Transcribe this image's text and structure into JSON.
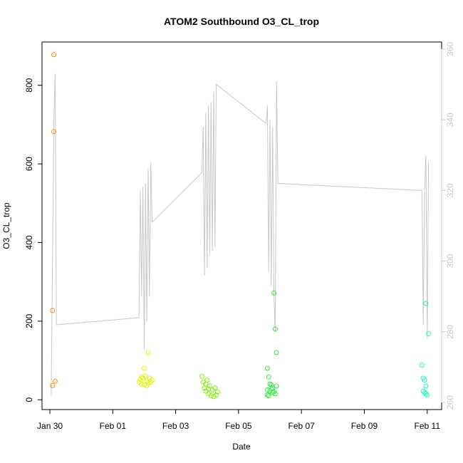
{
  "chart_data": {
    "type": "scatter",
    "title": "ATOM2 Southbound O3_CL_trop",
    "xlabel": "Date",
    "ylabel": "O3_CL_trop",
    "x_ticks": [
      "Jan 30",
      "Feb 01",
      "Feb 03",
      "Feb 05",
      "Feb 07",
      "Feb 09",
      "Feb 11"
    ],
    "y_ticks": [
      0,
      200,
      400,
      600,
      800
    ],
    "y2_ticks": [
      260,
      280,
      300,
      320,
      340,
      360
    ],
    "xlim": [
      "2017-01-29 18:00",
      "2017-02-11 11:00"
    ],
    "ylim": [
      -25,
      910
    ],
    "y2lim": [
      258,
      362
    ],
    "grid": false,
    "series": [
      {
        "color": "#FF8C00",
        "points": [
          [
            "2017-01-30 03:00",
            878
          ],
          [
            "2017-01-30 03:00",
            682
          ],
          [
            "2017-01-30 02:00",
            227
          ],
          [
            "2017-01-30 04:00",
            47
          ],
          [
            "2017-01-30 02:00",
            36
          ]
        ]
      },
      {
        "color": "#E8F000",
        "points": [
          [
            "2017-02-01 20:00",
            45
          ],
          [
            "2017-02-01 21:00",
            52
          ],
          [
            "2017-02-01 22:00",
            40
          ],
          [
            "2017-02-01 23:00",
            55
          ],
          [
            "2017-02-02 00:00",
            80
          ],
          [
            "2017-02-02 00:00",
            38
          ],
          [
            "2017-02-02 01:00",
            60
          ],
          [
            "2017-02-02 02:00",
            48
          ],
          [
            "2017-02-02 03:00",
            42
          ],
          [
            "2017-02-02 03:00",
            120
          ],
          [
            "2017-02-02 04:00",
            55
          ],
          [
            "2017-02-02 05:00",
            45
          ],
          [
            "2017-02-02 06:00",
            50
          ],
          [
            "2017-02-02 02:00",
            36
          ],
          [
            "2017-02-01 22:00",
            58
          ]
        ]
      },
      {
        "color": "#7CF000",
        "points": [
          [
            "2017-02-03 20:00",
            60
          ],
          [
            "2017-02-03 21:00",
            45
          ],
          [
            "2017-02-03 22:00",
            30
          ],
          [
            "2017-02-03 23:00",
            22
          ],
          [
            "2017-02-04 00:00",
            50
          ],
          [
            "2017-02-04 01:00",
            15
          ],
          [
            "2017-02-04 02:00",
            35
          ],
          [
            "2017-02-04 03:00",
            10
          ],
          [
            "2017-02-04 04:00",
            25
          ],
          [
            "2017-02-04 05:00",
            8
          ],
          [
            "2017-02-04 06:00",
            30
          ],
          [
            "2017-02-04 07:00",
            12
          ],
          [
            "2017-02-04 08:00",
            20
          ],
          [
            "2017-02-04 01:00",
            28
          ],
          [
            "2017-02-03 23:00",
            40
          ]
        ]
      },
      {
        "color": "#2EE83C",
        "points": [
          [
            "2017-02-05 22:00",
            80
          ],
          [
            "2017-02-05 23:00",
            58
          ],
          [
            "2017-02-06 00:00",
            40
          ],
          [
            "2017-02-05 22:00",
            25
          ],
          [
            "2017-02-05 22:00",
            12
          ],
          [
            "2017-02-05 23:00",
            10
          ],
          [
            "2017-02-06 01:00",
            38
          ],
          [
            "2017-02-06 02:00",
            30
          ],
          [
            "2017-02-06 03:00",
            20
          ],
          [
            "2017-02-06 03:00",
            272
          ],
          [
            "2017-02-06 04:00",
            180
          ],
          [
            "2017-02-06 05:00",
            120
          ],
          [
            "2017-02-06 05:00",
            35
          ],
          [
            "2017-02-06 04:00",
            15
          ],
          [
            "2017-02-06 02:00",
            18
          ],
          [
            "2017-02-06 00:00",
            22
          ],
          [
            "2017-02-06 01:00",
            28
          ]
        ]
      },
      {
        "color": "#1EF5C0",
        "points": [
          [
            "2017-02-10 20:00",
            88
          ],
          [
            "2017-02-10 21:00",
            55
          ],
          [
            "2017-02-10 22:00",
            50
          ],
          [
            "2017-02-10 23:00",
            35
          ],
          [
            "2017-02-10 21:00",
            22
          ],
          [
            "2017-02-10 22:00",
            18
          ],
          [
            "2017-02-10 23:00",
            15
          ],
          [
            "2017-02-11 00:00",
            12
          ],
          [
            "2017-02-10 23:00",
            245
          ],
          [
            "2017-02-11 01:00",
            168
          ]
        ]
      }
    ],
    "line_series": {
      "color": "#C8C8C8",
      "axis": "right",
      "points": [
        [
          "2017-01-30 01:00",
          262
        ],
        [
          "2017-01-30 02:00",
          300
        ],
        [
          "2017-01-30 03:00",
          340
        ],
        [
          "2017-01-30 04:00",
          353
        ],
        [
          "2017-01-30 05:00",
          282
        ],
        [
          "2017-02-01 20:00",
          284
        ],
        [
          "2017-02-01 21:00",
          320
        ],
        [
          "2017-02-01 22:00",
          290
        ],
        [
          "2017-02-01 23:00",
          321
        ],
        [
          "2017-02-02 00:00",
          275
        ],
        [
          "2017-02-02 01:00",
          322
        ],
        [
          "2017-02-02 02:00",
          283
        ],
        [
          "2017-02-02 03:00",
          326
        ],
        [
          "2017-02-02 04:00",
          290
        ],
        [
          "2017-02-02 05:00",
          328
        ],
        [
          "2017-02-02 06:00",
          311
        ],
        [
          "2017-02-03 20:00",
          325
        ],
        [
          "2017-02-03 21:00",
          338
        ],
        [
          "2017-02-03 22:00",
          296
        ],
        [
          "2017-02-03 23:00",
          342
        ],
        [
          "2017-02-04 00:00",
          298
        ],
        [
          "2017-02-04 01:00",
          344
        ],
        [
          "2017-02-04 02:00",
          302
        ],
        [
          "2017-02-04 03:00",
          345
        ],
        [
          "2017-02-04 04:00",
          303
        ],
        [
          "2017-02-04 05:00",
          348
        ],
        [
          "2017-02-04 06:00",
          304
        ],
        [
          "2017-02-04 07:00",
          350
        ],
        [
          "2017-02-05 21:00",
          339
        ],
        [
          "2017-02-05 22:00",
          344
        ],
        [
          "2017-02-05 23:00",
          297
        ],
        [
          "2017-02-06 00:00",
          340
        ],
        [
          "2017-02-06 01:00",
          293
        ],
        [
          "2017-02-06 02:00",
          338
        ],
        [
          "2017-02-06 03:00",
          290
        ],
        [
          "2017-02-06 04:00",
          280
        ],
        [
          "2017-02-06 05:00",
          351
        ],
        [
          "2017-02-06 06:00",
          322
        ],
        [
          "2017-02-10 20:00",
          320
        ],
        [
          "2017-02-10 21:00",
          282
        ],
        [
          "2017-02-10 22:00",
          320
        ],
        [
          "2017-02-10 23:00",
          330
        ],
        [
          "2017-02-11 00:00",
          278
        ],
        [
          "2017-02-11 01:00",
          328
        ]
      ]
    }
  }
}
